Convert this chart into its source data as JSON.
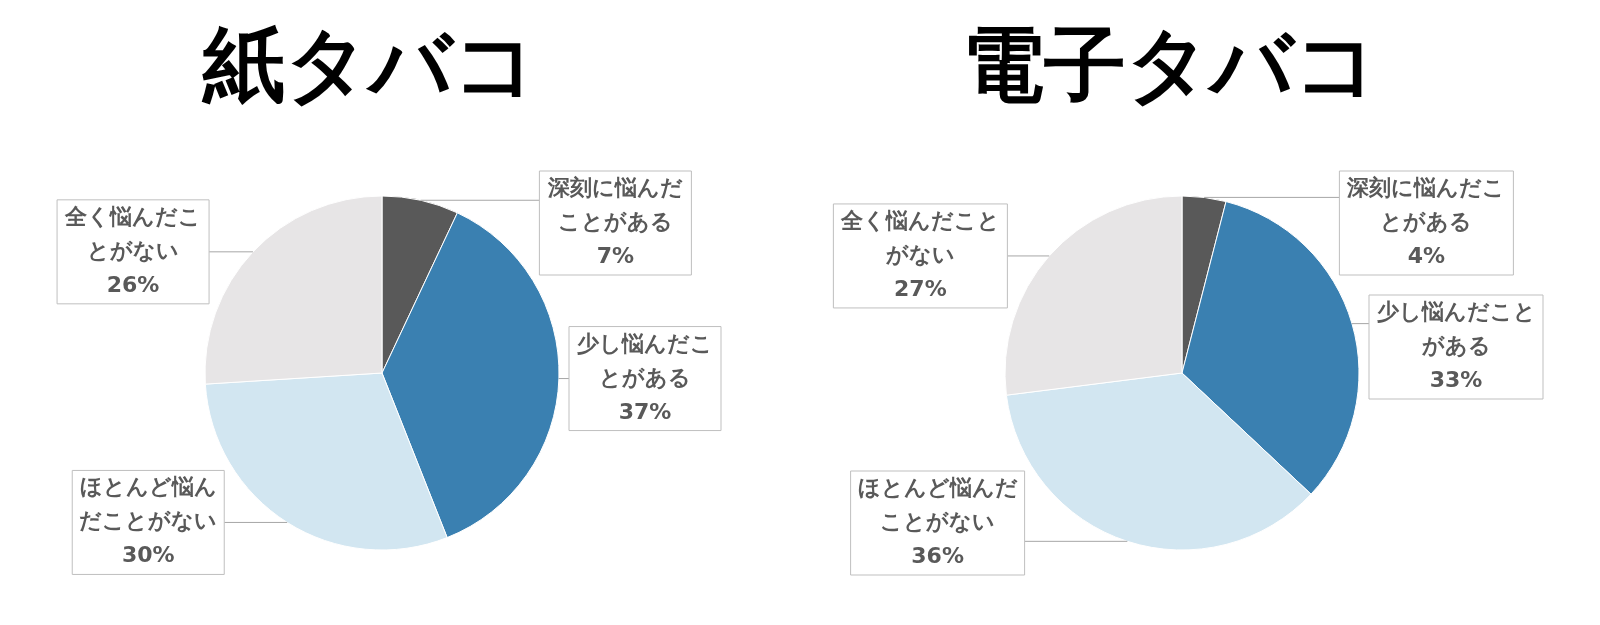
{
  "chart_data": [
    {
      "type": "pie",
      "title": "紙タバコ",
      "categories": [
        "深刻に悩んだことがある",
        "少し悩んだことがある",
        "ほとんど悩んだことがない",
        "全く悩んだことがない"
      ],
      "values": [
        7,
        37,
        30,
        26
      ],
      "value_labels": [
        "7%",
        "37%",
        "30%",
        "26%"
      ],
      "colors": [
        "#595959",
        "#3a80b1",
        "#d2e6f1",
        "#e7e5e6"
      ]
    },
    {
      "type": "pie",
      "title": "電子タバコ",
      "categories": [
        "深刻に悩んだことがある",
        "少し悩んだことがある",
        "ほとんど悩んだことがない",
        "全く悩んだことがない"
      ],
      "values": [
        4,
        33,
        36,
        27
      ],
      "value_labels": [
        "4%",
        "33%",
        "36%",
        "27%"
      ],
      "colors": [
        "#595959",
        "#3a80b1",
        "#d2e6f1",
        "#e7e5e6"
      ]
    }
  ]
}
